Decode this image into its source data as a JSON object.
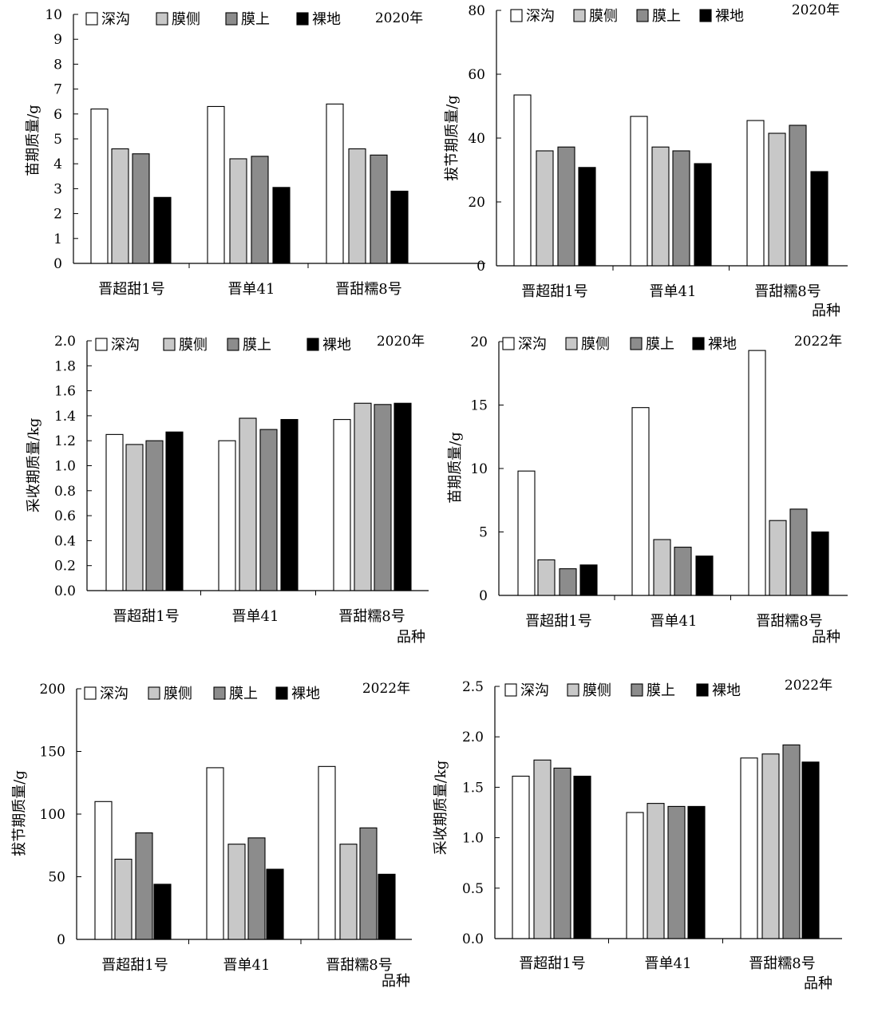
{
  "legend_labels": [
    "深沟",
    "膜侧",
    "膜上",
    "裸地"
  ],
  "series_colors": [
    "#ffffff",
    "#c8c8c8",
    "#8c8c8c",
    "#000000"
  ],
  "categories": [
    "晋超甜1号",
    "晋单41",
    "晋甜糯8号"
  ],
  "chart_data": [
    {
      "type": "bar",
      "year_label": "2020年",
      "ylabel": "苗期质量/g",
      "xlabel": "",
      "ylim": [
        0,
        10
      ],
      "yticks": [
        "0",
        "1",
        "2",
        "3",
        "4",
        "5",
        "6",
        "7",
        "8",
        "9",
        "10"
      ],
      "legend": "top",
      "grid": false,
      "categories": [
        "晋超甜1号",
        "晋单41",
        "晋甜糯8号"
      ],
      "series": [
        {
          "name": "深沟",
          "values": [
            6.2,
            6.3,
            6.4
          ]
        },
        {
          "name": "膜侧",
          "values": [
            4.6,
            4.2,
            4.6
          ]
        },
        {
          "name": "膜上",
          "values": [
            4.4,
            4.3,
            4.35
          ]
        },
        {
          "name": "裸地",
          "values": [
            2.65,
            3.05,
            2.9
          ]
        }
      ]
    },
    {
      "type": "bar",
      "year_label": "2020年",
      "ylabel": "拔节期质量/g",
      "xlabel": "品种",
      "ylim": [
        0,
        80
      ],
      "yticks": [
        "0",
        "20",
        "40",
        "60",
        "80"
      ],
      "legend": "top",
      "grid": false,
      "categories": [
        "晋超甜1号",
        "晋单41",
        "晋甜糯8号"
      ],
      "series": [
        {
          "name": "深沟",
          "values": [
            53.5,
            46.8,
            45.5
          ]
        },
        {
          "name": "膜侧",
          "values": [
            36,
            37.2,
            41.5
          ]
        },
        {
          "name": "膜上",
          "values": [
            37.2,
            36,
            44
          ]
        },
        {
          "name": "裸地",
          "values": [
            30.8,
            32,
            29.5
          ]
        }
      ]
    },
    {
      "type": "bar",
      "year_label": "2020年",
      "ylabel": "采收期质量/kg",
      "xlabel": "品种",
      "ylim": [
        0,
        2.0
      ],
      "yticks": [
        "0.0",
        "0.2",
        "0.4",
        "0.6",
        "0.8",
        "1.0",
        "1.2",
        "1.4",
        "1.6",
        "1.8",
        "2.0"
      ],
      "legend": "top",
      "grid": false,
      "categories": [
        "晋超甜1号",
        "晋单41",
        "晋甜糯8号"
      ],
      "series": [
        {
          "name": "深沟",
          "values": [
            1.25,
            1.2,
            1.37
          ]
        },
        {
          "name": "膜侧",
          "values": [
            1.17,
            1.38,
            1.5
          ]
        },
        {
          "name": "膜上",
          "values": [
            1.2,
            1.29,
            1.49
          ]
        },
        {
          "name": "裸地",
          "values": [
            1.27,
            1.37,
            1.5
          ]
        }
      ]
    },
    {
      "type": "bar",
      "year_label": "2022年",
      "ylabel": "苗期质量/g",
      "xlabel": "品种",
      "ylim": [
        0,
        20
      ],
      "yticks": [
        "0",
        "5",
        "10",
        "15",
        "20"
      ],
      "legend": "top",
      "grid": false,
      "categories": [
        "晋超甜1号",
        "晋单41",
        "晋甜糯8号"
      ],
      "series": [
        {
          "name": "深沟",
          "values": [
            9.8,
            14.8,
            19.3
          ]
        },
        {
          "name": "膜侧",
          "values": [
            2.8,
            4.4,
            5.9
          ]
        },
        {
          "name": "膜上",
          "values": [
            2.1,
            3.8,
            6.8
          ]
        },
        {
          "name": "裸地",
          "values": [
            2.4,
            3.1,
            5.0
          ]
        }
      ]
    },
    {
      "type": "bar",
      "year_label": "2022年",
      "ylabel": "拔节期质量/g",
      "xlabel": "品种",
      "ylim": [
        0,
        200
      ],
      "yticks": [
        "0",
        "50",
        "100",
        "150",
        "200"
      ],
      "legend": "top",
      "grid": false,
      "categories": [
        "晋超甜1号",
        "晋单41",
        "晋甜糯8号"
      ],
      "series": [
        {
          "name": "深沟",
          "values": [
            110,
            137,
            138
          ]
        },
        {
          "name": "膜侧",
          "values": [
            64,
            76,
            76
          ]
        },
        {
          "name": "膜上",
          "values": [
            85,
            81,
            89
          ]
        },
        {
          "name": "裸地",
          "values": [
            44,
            56,
            52
          ]
        }
      ]
    },
    {
      "type": "bar",
      "year_label": "2022年",
      "ylabel": "采收期质量/kg",
      "xlabel": "品种",
      "ylim": [
        0,
        2.5
      ],
      "yticks": [
        "0.0",
        "0.5",
        "1.0",
        "1.5",
        "2.0",
        "2.5"
      ],
      "legend": "top",
      "grid": false,
      "categories": [
        "晋超甜1号",
        "晋单41",
        "晋甜糯8号"
      ],
      "series": [
        {
          "name": "深沟",
          "values": [
            1.61,
            1.25,
            1.79
          ]
        },
        {
          "name": "膜侧",
          "values": [
            1.77,
            1.34,
            1.83
          ]
        },
        {
          "name": "膜上",
          "values": [
            1.69,
            1.31,
            1.92
          ]
        },
        {
          "name": "裸地",
          "values": [
            1.61,
            1.31,
            1.75
          ]
        }
      ]
    }
  ]
}
